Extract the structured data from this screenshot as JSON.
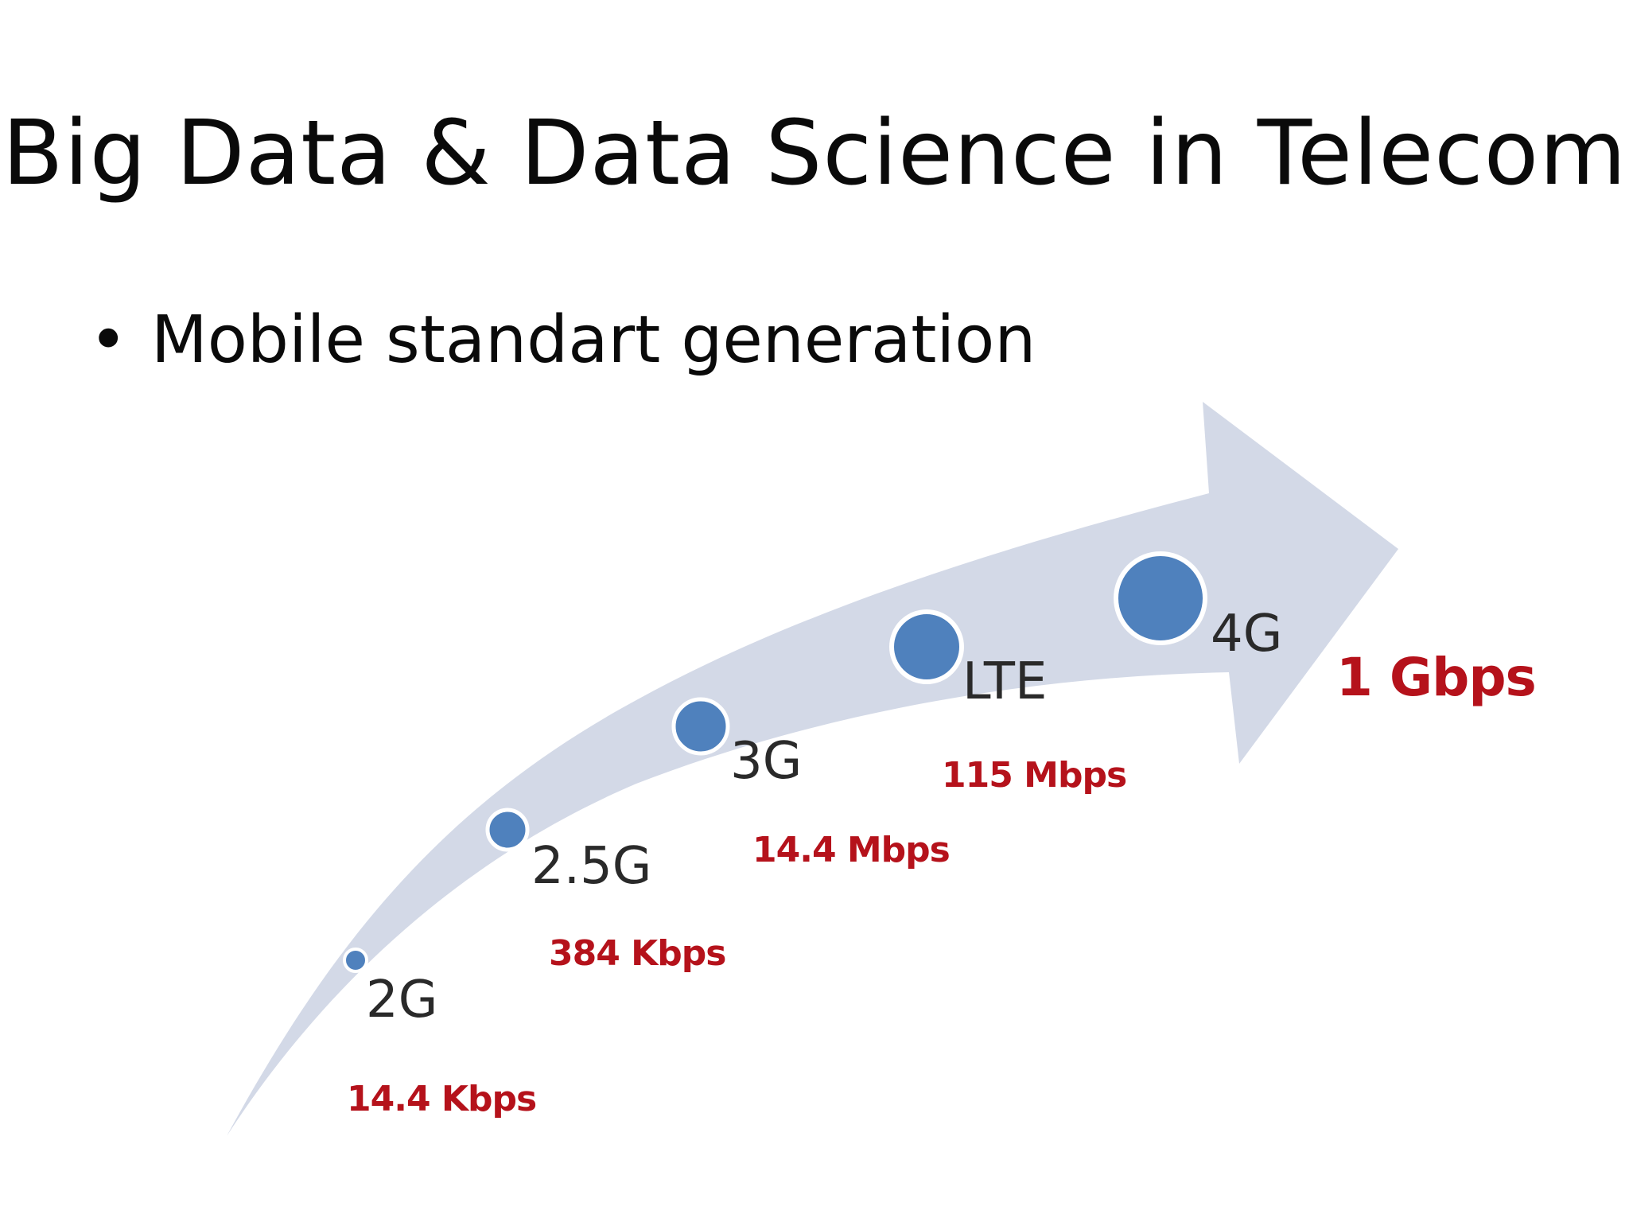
{
  "slide": {
    "title": "Big Data & Data Science in Telecom",
    "bullet": "Mobile standart generation",
    "bullet_symbol": "•"
  },
  "diagram": {
    "arrow_color": "#d3d9e7",
    "dot_color": "#4f81bd",
    "speed_color": "#b5121b",
    "generations": [
      {
        "label": "2G",
        "speed": "14.4 Kbps"
      },
      {
        "label": "2.5G",
        "speed": "384 Kbps"
      },
      {
        "label": "3G",
        "speed": "14.4 Mbps"
      },
      {
        "label": "LTE",
        "speed": "115 Mbps"
      },
      {
        "label": "4G",
        "speed": "1 Gbps"
      }
    ]
  }
}
